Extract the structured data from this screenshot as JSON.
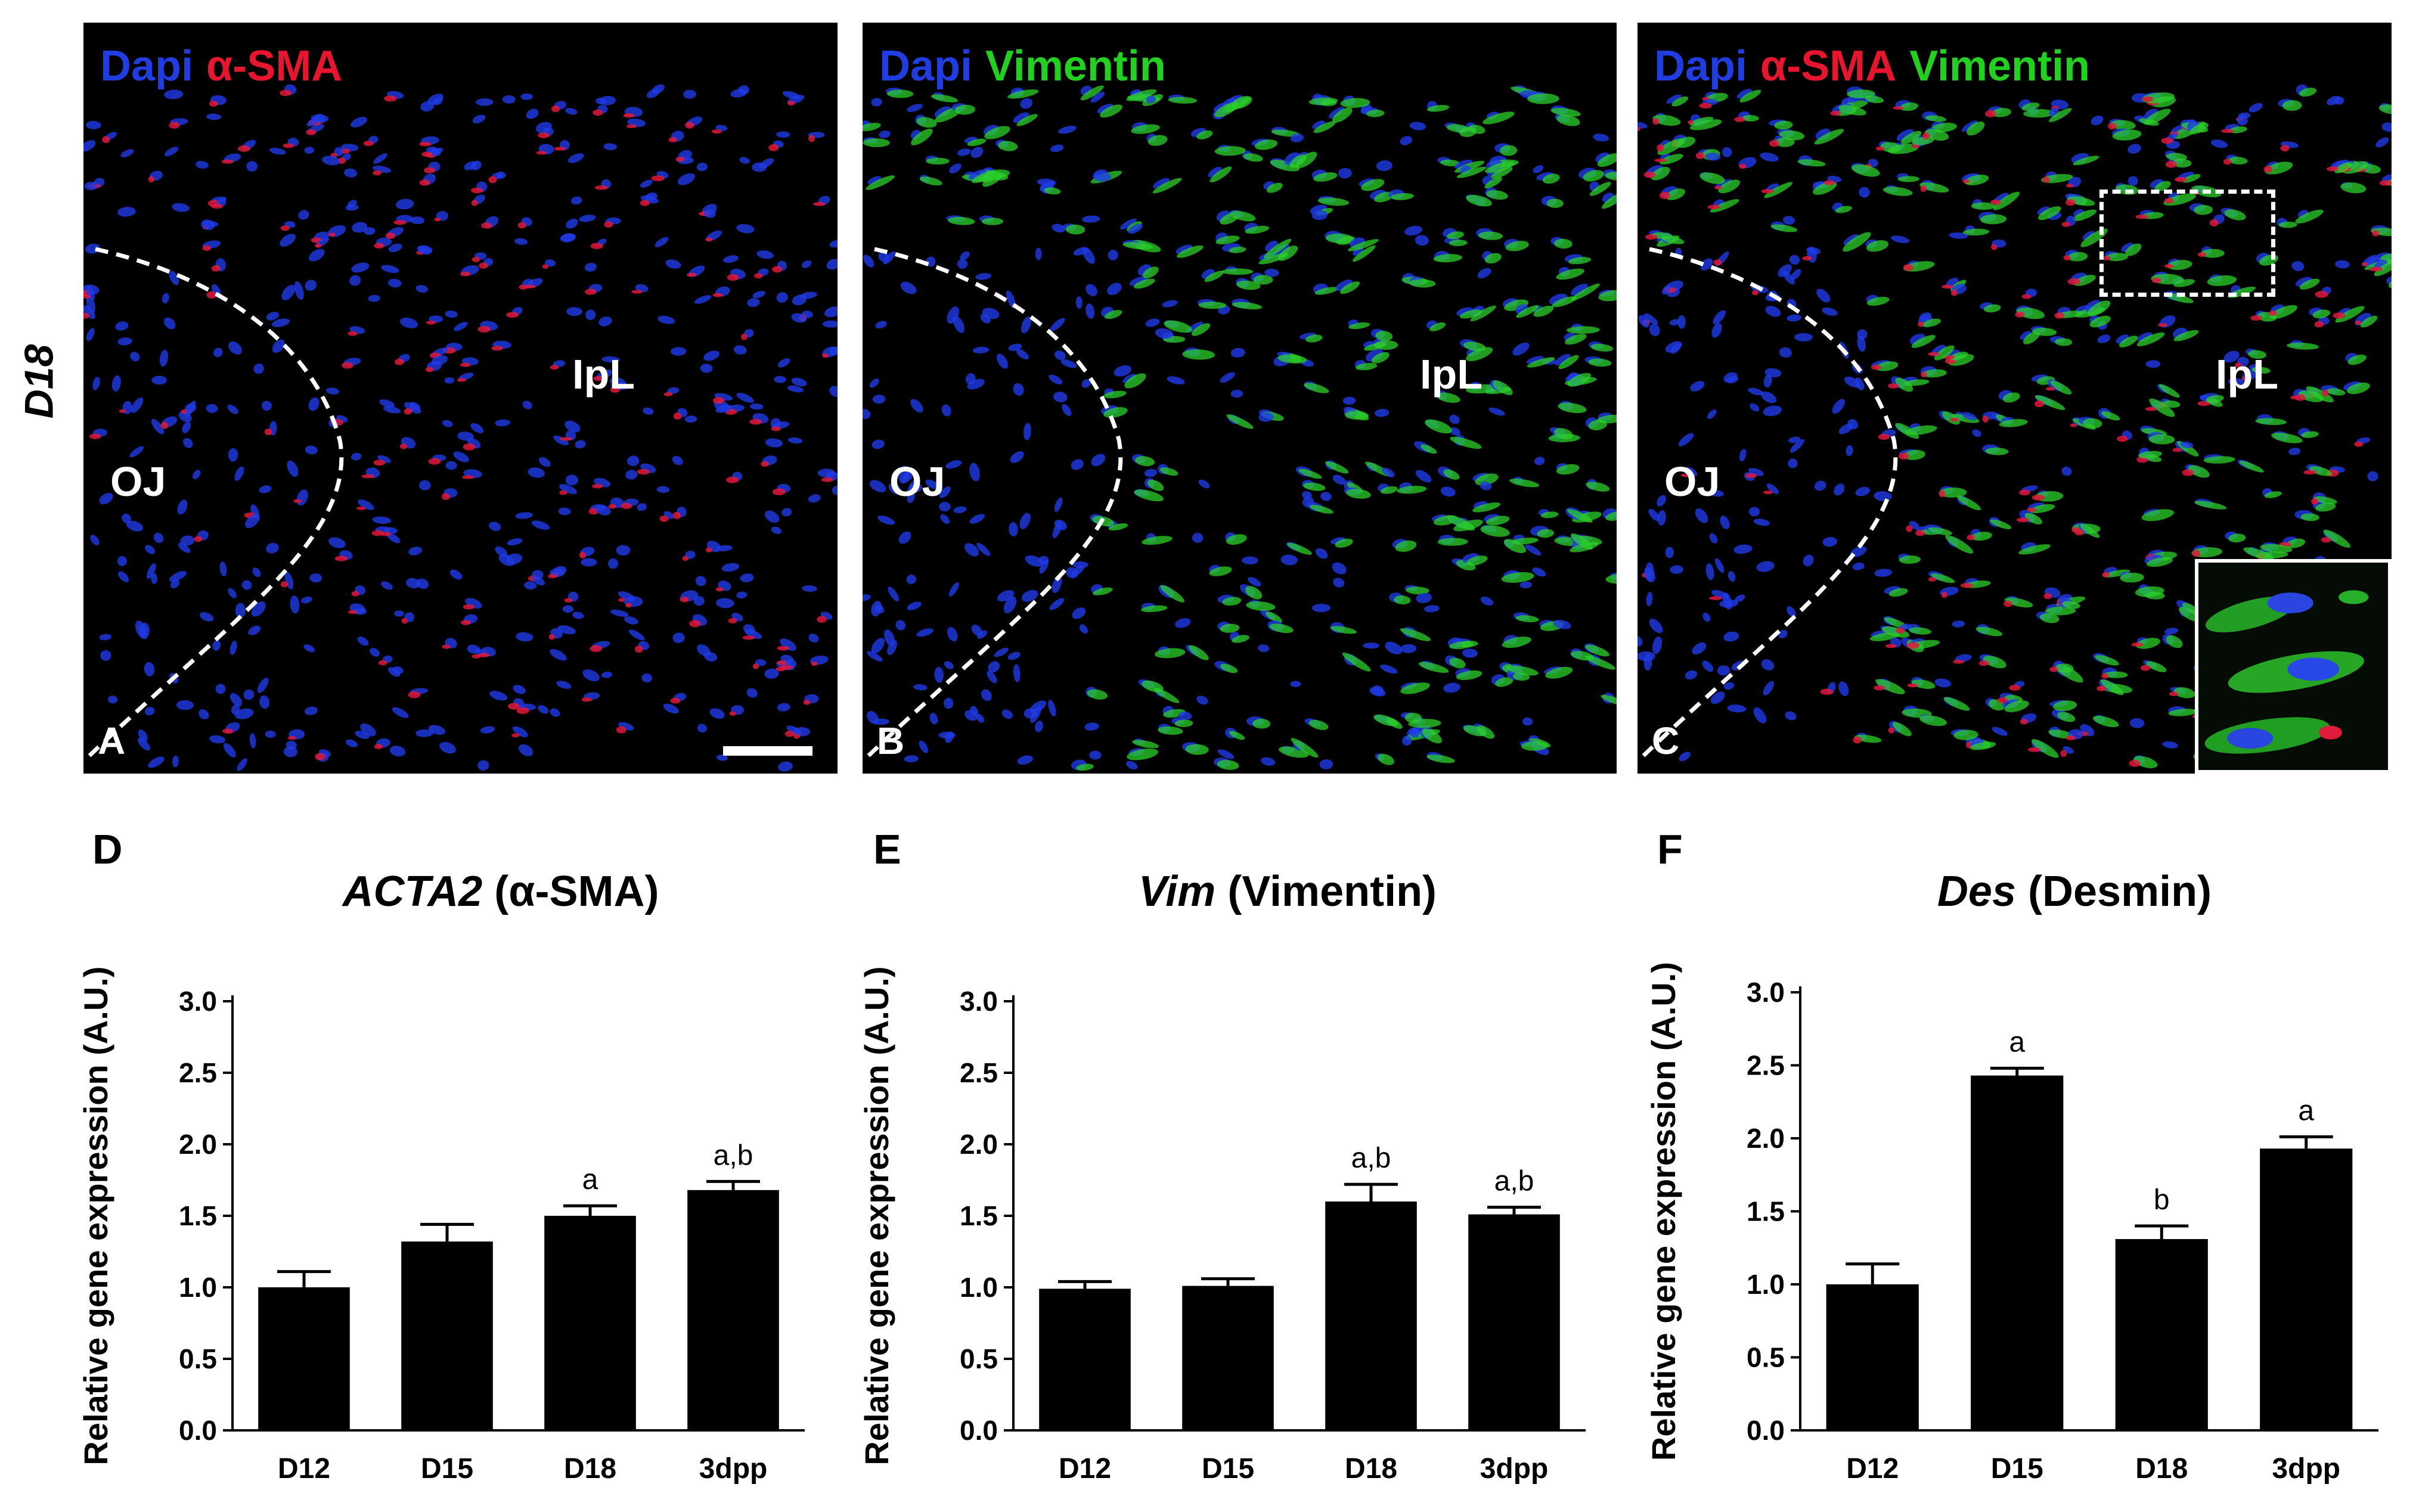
{
  "row_label": "D18",
  "micrographs": [
    {
      "panel": "A",
      "stains": [
        {
          "text": "Dapi",
          "color": "#1f3de0"
        },
        {
          "text": "α-SMA",
          "color": "#e8152f"
        }
      ],
      "regions": [
        "OJ",
        "IpL"
      ]
    },
    {
      "panel": "B",
      "stains": [
        {
          "text": "Dapi",
          "color": "#1f3de0"
        },
        {
          "text": "Vimentin",
          "color": "#22d11f"
        }
      ],
      "regions": [
        "OJ",
        "IpL"
      ]
    },
    {
      "panel": "C",
      "stains": [
        {
          "text": "Dapi",
          "color": "#1f3de0"
        },
        {
          "text": "α-SMA",
          "color": "#e8152f"
        },
        {
          "text": "Vimentin",
          "color": "#22d11f"
        }
      ],
      "regions": [
        "OJ",
        "IpL"
      ]
    }
  ],
  "chart_data": [
    {
      "panel": "D",
      "type": "bar",
      "title_gene": "ACTA2",
      "title_protein": "(α-SMA)",
      "ylabel": "Relative gene expression (A.U.)",
      "categories": [
        "D12",
        "D15",
        "D18",
        "3dpp"
      ],
      "values": [
        1.0,
        1.32,
        1.5,
        1.68
      ],
      "errors": [
        0.11,
        0.12,
        0.07,
        0.06
      ],
      "annotations": [
        "",
        "",
        "a",
        "a,b"
      ],
      "ylim": [
        0,
        3.0
      ],
      "yticks": [
        "0.0",
        "0.5",
        "1.0",
        "1.5",
        "2.0",
        "2.5",
        "3.0"
      ],
      "bar_color": "#000000"
    },
    {
      "panel": "E",
      "type": "bar",
      "title_gene": "Vim",
      "title_protein": "(Vimentin)",
      "ylabel": "Relative gene expression (A.U.)",
      "categories": [
        "D12",
        "D15",
        "D18",
        "3dpp"
      ],
      "values": [
        0.99,
        1.01,
        1.6,
        1.51
      ],
      "errors": [
        0.05,
        0.05,
        0.12,
        0.05
      ],
      "annotations": [
        "",
        "",
        "a,b",
        "a,b"
      ],
      "ylim": [
        0,
        3.0
      ],
      "yticks": [
        "0.0",
        "0.5",
        "1.0",
        "1.5",
        "2.0",
        "2.5",
        "3.0"
      ],
      "bar_color": "#000000"
    },
    {
      "panel": "F",
      "type": "bar",
      "title_gene": "Des",
      "title_protein": "(Desmin)",
      "ylabel": "Relative gene expression (A.U.)",
      "categories": [
        "D12",
        "D15",
        "D18",
        "3dpp"
      ],
      "values": [
        1.0,
        2.43,
        1.31,
        1.93
      ],
      "errors": [
        0.14,
        0.05,
        0.09,
        0.08
      ],
      "annotations": [
        "",
        "a",
        "b",
        "a"
      ],
      "ylim": [
        0,
        3.0
      ],
      "yticks": [
        "0.0",
        "0.5",
        "1.0",
        "1.5",
        "2.0",
        "2.5",
        "3.0"
      ],
      "bar_color": "#000000"
    }
  ]
}
